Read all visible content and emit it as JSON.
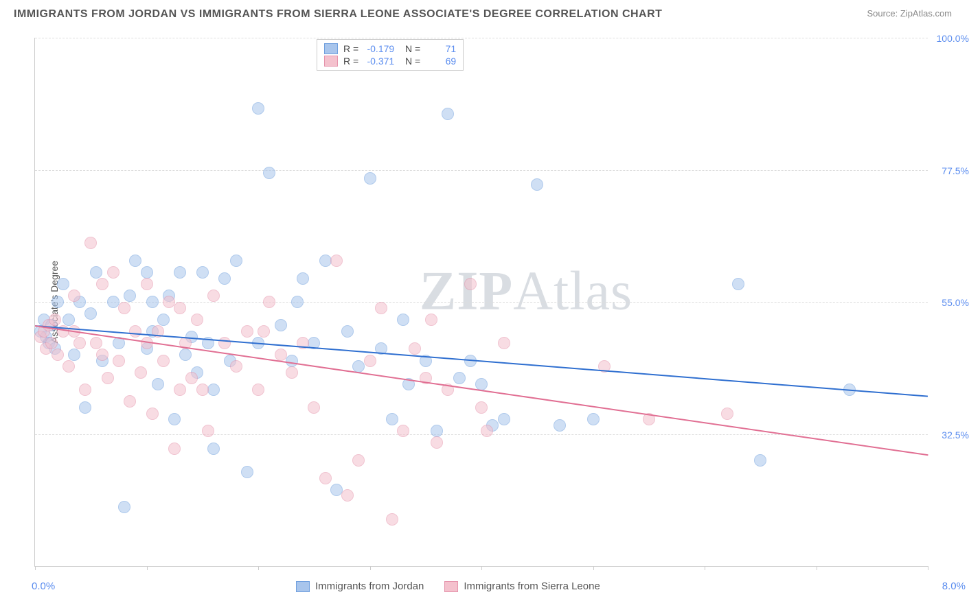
{
  "title": "IMMIGRANTS FROM JORDAN VS IMMIGRANTS FROM SIERRA LEONE ASSOCIATE'S DEGREE CORRELATION CHART",
  "source": "Source: ZipAtlas.com",
  "watermark_a": "ZIP",
  "watermark_b": "Atlas",
  "y_axis_title": "Associate's Degree",
  "x_min_label": "0.0%",
  "x_max_label": "8.0%",
  "chart": {
    "type": "scatter",
    "xlim": [
      0,
      8
    ],
    "ylim": [
      10,
      100
    ],
    "x_ticks": [
      0,
      1,
      2,
      3,
      4,
      5,
      6,
      7,
      8
    ],
    "y_gridlines": [
      32.5,
      55.0,
      77.5,
      100.0
    ],
    "y_tick_labels": [
      "32.5%",
      "55.0%",
      "77.5%",
      "100.0%"
    ],
    "background_color": "#ffffff",
    "grid_color": "#dddddd",
    "axis_color": "#cccccc",
    "tick_label_color": "#5b8def",
    "point_radius": 8,
    "point_opacity": 0.55,
    "series": [
      {
        "name": "Immigrants from Jordan",
        "color_fill": "#a8c5ec",
        "color_stroke": "#6f9fde",
        "R": "-0.179",
        "N": "71",
        "trend": {
          "x1": 0,
          "y1": 51,
          "x2": 8,
          "y2": 39,
          "color": "#2f6fd0",
          "width": 2
        },
        "points": [
          [
            0.05,
            50
          ],
          [
            0.08,
            52
          ],
          [
            0.1,
            49
          ],
          [
            0.12,
            48
          ],
          [
            0.15,
            51
          ],
          [
            0.18,
            47
          ],
          [
            0.2,
            55
          ],
          [
            0.25,
            58
          ],
          [
            0.3,
            52
          ],
          [
            0.35,
            46
          ],
          [
            0.4,
            55
          ],
          [
            0.5,
            53
          ],
          [
            0.55,
            60
          ],
          [
            0.6,
            45
          ],
          [
            0.7,
            55
          ],
          [
            0.75,
            48
          ],
          [
            0.8,
            20
          ],
          [
            0.85,
            56
          ],
          [
            0.9,
            62
          ],
          [
            1.0,
            47
          ],
          [
            1.05,
            55
          ],
          [
            1.1,
            41
          ],
          [
            1.15,
            52
          ],
          [
            1.2,
            56
          ],
          [
            1.25,
            35
          ],
          [
            1.3,
            60
          ],
          [
            1.35,
            46
          ],
          [
            1.4,
            49
          ],
          [
            1.45,
            43
          ],
          [
            1.5,
            60
          ],
          [
            1.55,
            48
          ],
          [
            1.6,
            30
          ],
          [
            1.7,
            59
          ],
          [
            1.75,
            45
          ],
          [
            1.8,
            62
          ],
          [
            1.9,
            26
          ],
          [
            2.0,
            88
          ],
          [
            2.1,
            77
          ],
          [
            2.2,
            51
          ],
          [
            2.3,
            45
          ],
          [
            2.35,
            55
          ],
          [
            2.4,
            59
          ],
          [
            2.5,
            48
          ],
          [
            2.6,
            62
          ],
          [
            2.7,
            23
          ],
          [
            2.8,
            50
          ],
          [
            2.9,
            44
          ],
          [
            3.0,
            76
          ],
          [
            3.1,
            47
          ],
          [
            3.2,
            35
          ],
          [
            3.3,
            52
          ],
          [
            3.35,
            41
          ],
          [
            3.5,
            45
          ],
          [
            3.6,
            33
          ],
          [
            3.7,
            87
          ],
          [
            3.8,
            42
          ],
          [
            3.9,
            45
          ],
          [
            4.0,
            41
          ],
          [
            4.1,
            34
          ],
          [
            4.2,
            35
          ],
          [
            4.5,
            75
          ],
          [
            4.7,
            34
          ],
          [
            5.0,
            35
          ],
          [
            6.3,
            58
          ],
          [
            6.5,
            28
          ],
          [
            7.3,
            40
          ],
          [
            0.45,
            37
          ],
          [
            1.0,
            60
          ],
          [
            1.6,
            40
          ],
          [
            2.0,
            48
          ],
          [
            1.05,
            50
          ]
        ]
      },
      {
        "name": "Immigrants from Sierra Leone",
        "color_fill": "#f4c1cd",
        "color_stroke": "#e593ab",
        "R": "-0.371",
        "N": "69",
        "trend": {
          "x1": 0,
          "y1": 51,
          "x2": 8,
          "y2": 29,
          "color": "#e16f93",
          "width": 2
        },
        "points": [
          [
            0.05,
            49
          ],
          [
            0.08,
            50
          ],
          [
            0.1,
            47
          ],
          [
            0.12,
            51
          ],
          [
            0.15,
            48
          ],
          [
            0.18,
            52
          ],
          [
            0.2,
            46
          ],
          [
            0.25,
            50
          ],
          [
            0.3,
            44
          ],
          [
            0.35,
            56
          ],
          [
            0.4,
            48
          ],
          [
            0.45,
            40
          ],
          [
            0.5,
            65
          ],
          [
            0.55,
            48
          ],
          [
            0.6,
            58
          ],
          [
            0.65,
            42
          ],
          [
            0.7,
            60
          ],
          [
            0.75,
            45
          ],
          [
            0.8,
            54
          ],
          [
            0.85,
            38
          ],
          [
            0.9,
            50
          ],
          [
            0.95,
            43
          ],
          [
            1.0,
            48
          ],
          [
            1.05,
            36
          ],
          [
            1.1,
            50
          ],
          [
            1.15,
            45
          ],
          [
            1.2,
            55
          ],
          [
            1.25,
            30
          ],
          [
            1.3,
            54
          ],
          [
            1.35,
            48
          ],
          [
            1.4,
            42
          ],
          [
            1.45,
            52
          ],
          [
            1.5,
            40
          ],
          [
            1.55,
            33
          ],
          [
            1.6,
            56
          ],
          [
            1.7,
            48
          ],
          [
            1.8,
            44
          ],
          [
            1.9,
            50
          ],
          [
            2.0,
            40
          ],
          [
            2.1,
            55
          ],
          [
            2.2,
            46
          ],
          [
            2.3,
            43
          ],
          [
            2.4,
            48
          ],
          [
            2.5,
            37
          ],
          [
            2.6,
            25
          ],
          [
            2.7,
            62
          ],
          [
            2.8,
            22
          ],
          [
            2.9,
            28
          ],
          [
            3.0,
            45
          ],
          [
            3.1,
            54
          ],
          [
            3.2,
            18
          ],
          [
            3.3,
            33
          ],
          [
            3.4,
            47
          ],
          [
            3.5,
            42
          ],
          [
            3.55,
            52
          ],
          [
            3.6,
            31
          ],
          [
            3.7,
            40
          ],
          [
            3.9,
            58
          ],
          [
            4.0,
            37
          ],
          [
            4.2,
            48
          ],
          [
            4.05,
            33
          ],
          [
            5.1,
            44
          ],
          [
            5.5,
            35
          ],
          [
            6.2,
            36
          ],
          [
            0.35,
            50
          ],
          [
            0.6,
            46
          ],
          [
            1.0,
            58
          ],
          [
            1.3,
            40
          ],
          [
            2.05,
            50
          ]
        ]
      }
    ]
  },
  "legend_bottom": [
    {
      "label": "Immigrants from Jordan",
      "fill": "#a8c5ec",
      "stroke": "#6f9fde"
    },
    {
      "label": "Immigrants from Sierra Leone",
      "fill": "#f4c1cd",
      "stroke": "#e593ab"
    }
  ]
}
